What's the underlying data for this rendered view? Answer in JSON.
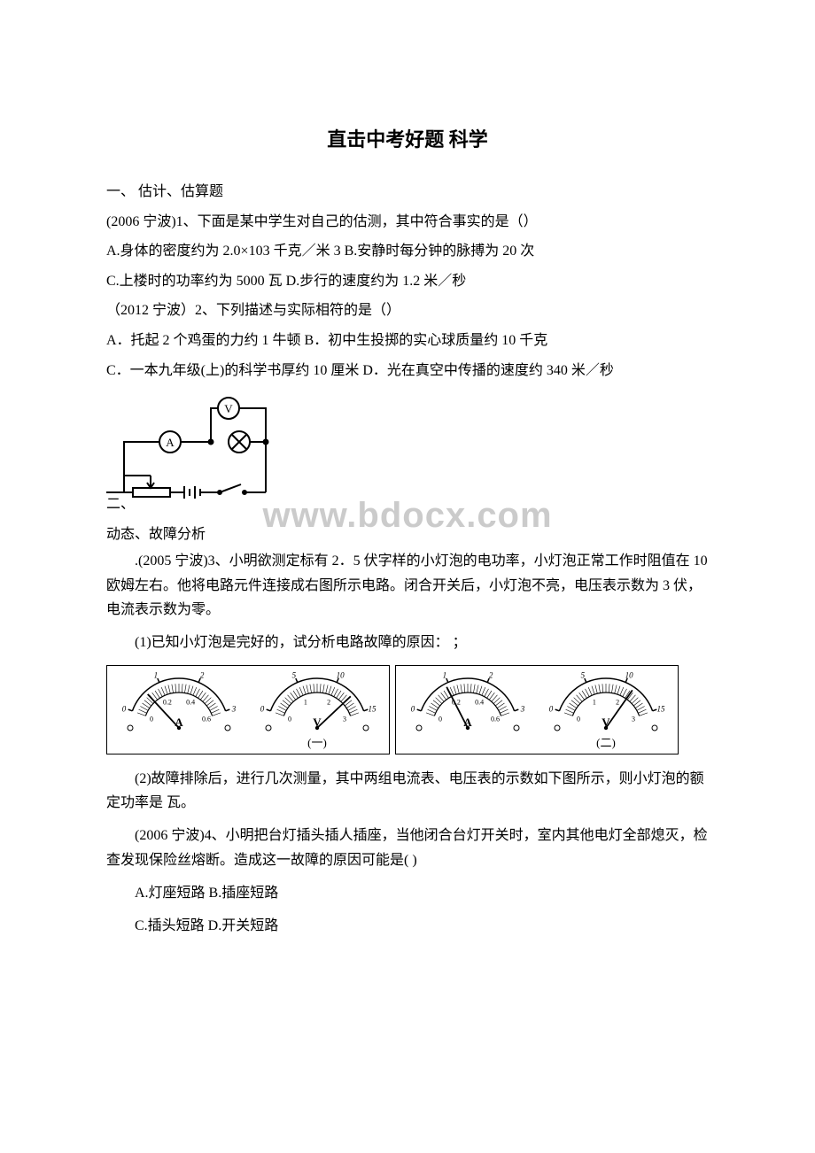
{
  "title": "直击中考好题 科学",
  "s1_heading": "一、 估计、估算题",
  "q1_stem": " (2006 宁波)1、下面是某中学生对自己的估测，其中符合事实的是（）",
  "q1_optA": "A.身体的密度约为 2.0×103 千克／米 3 B.安静时每分钟的脉搏为 20 次",
  "q1_optC": "C.上楼时的功率约为 5000 瓦  D.步行的速度约为 1.2 米／秒",
  "q2_stem": "（2012 宁波）2、下列描述与实际相符的是（）",
  "q2_optA": "A．托起 2 个鸡蛋的力约 1 牛顿 B．初中生投掷的实心球质量约 10 千克",
  "q2_optC": "C．一本九年级(上)的科学书厚约 10 厘米 D．光在真空中传播的速度约 340 米／秒",
  "s2_prefix": "二、",
  "s2_rest": "动态、故障分析",
  "q3_stem": ".(2005 宁波)3、小明欲测定标有 2．5 伏字样的小灯泡的电功率，小灯泡正常工作时阻值在 10 欧姆左右。他将电路元件连接成右图所示电路。闭合开关后，小灯泡不亮，电压表示数为 3 伏，电流表示数为零。",
  "q3_p1": "(1)已知小灯泡是完好的，试分析电路故障的原因：  ；",
  "q3_p2": "(2)故障排除后，进行几次测量，其中两组电流表、电压表的示数如下图所示，则小灯泡的额定功率是 瓦。",
  "q4_stem": "(2006 宁波)4、小明把台灯插头插人插座，当他闭合台灯开关时，室内其他电灯全部熄灭，检查发现保险丝熔断。造成这一故障的原因可能是(   )",
  "q4_optA": "A.灯座短路 B.插座短路",
  "q4_optC": "C.插头短路 D.开关短路",
  "circuit": {
    "labels": {
      "voltmeter": "V",
      "ammeter": "A",
      "bulb": "⊗"
    },
    "stroke": "#000000",
    "stroke_width": 2
  },
  "meters": {
    "group1_label": "(一)",
    "group2_label": "(二)",
    "ammeter": {
      "unit": "A",
      "ticks_top": [
        "0",
        "1",
        "2",
        "3"
      ],
      "ticks_bot": [
        "0",
        "0.2",
        "0.4",
        "0.6"
      ]
    },
    "voltmeter": {
      "unit": "V",
      "ticks_top": [
        "0",
        "5",
        "10",
        "15"
      ],
      "ticks_bot": [
        "0",
        "1",
        "2",
        "3"
      ]
    },
    "needle_angles": {
      "g1_a": -55,
      "g1_v": 60,
      "g2_a": -35,
      "g2_v": 45
    },
    "stroke": "#000000"
  },
  "watermark": "www.bdocx.com"
}
